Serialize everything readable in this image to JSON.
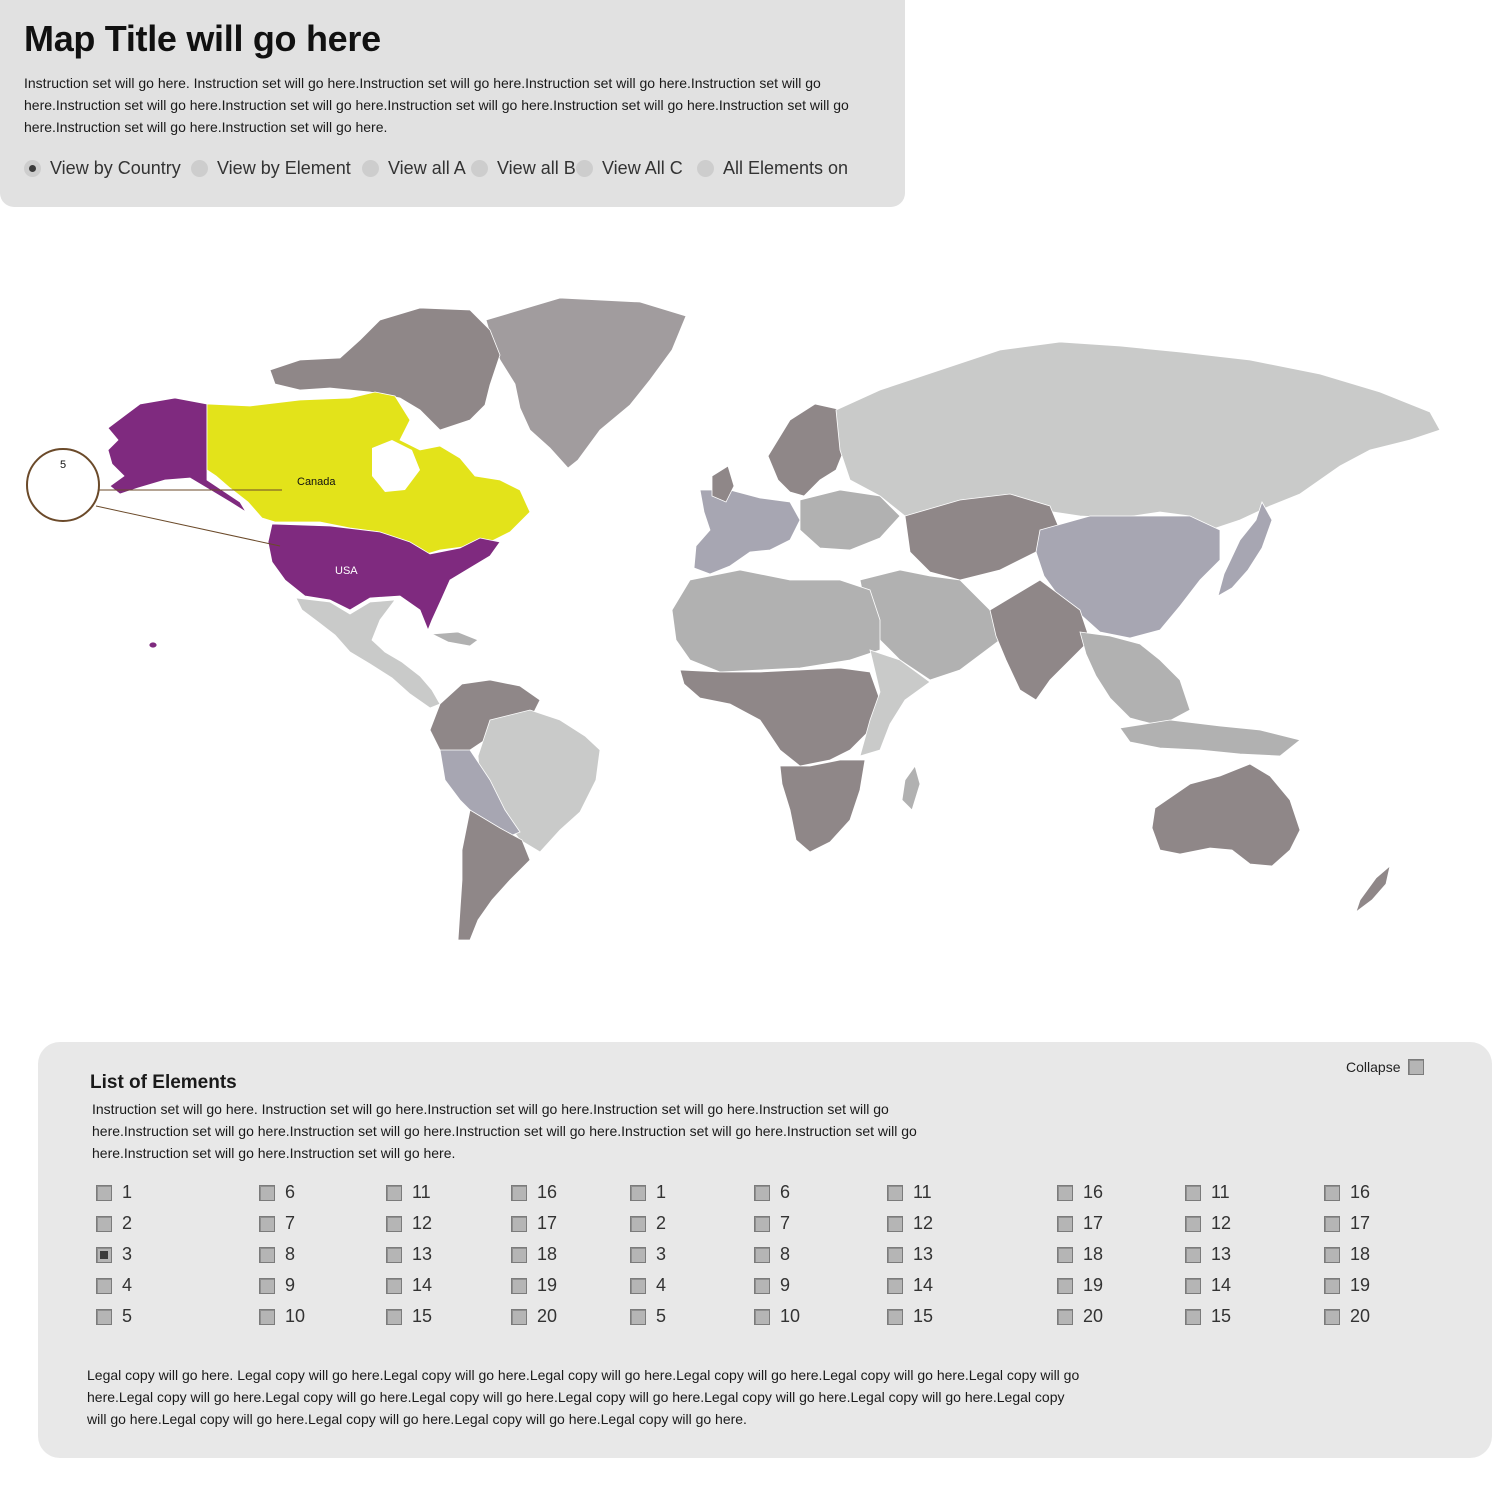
{
  "header": {
    "title": "Map Title will go here",
    "instructions": "Instruction set will go here. Instruction set will go here.Instruction set will go here.Instruction set will go here.Instruction set will go here.Instruction set will go here.Instruction set will go here.Instruction set will go here.Instruction set will go here.Instruction set will go here.Instruction set will go here.Instruction set will go here.",
    "view_options": [
      {
        "label": "View by Country",
        "checked": true
      },
      {
        "label": "View by Element",
        "checked": false
      },
      {
        "label": "View all A",
        "checked": false
      },
      {
        "label": "View all B",
        "checked": false
      },
      {
        "label": "View All C",
        "checked": false
      },
      {
        "label": "All Elements on",
        "checked": false
      }
    ]
  },
  "map": {
    "labels": {
      "canada": "Canada",
      "usa": "USA",
      "callout": "5"
    },
    "colors": {
      "ocean": "#ffffff",
      "usa_alaska": "#7f2a7f",
      "canada": "#e3e31a",
      "greenland": "#a19c9e",
      "light_gray": "#c9cac9",
      "mid_gray": "#b1b1b1",
      "dark_gray": "#8f8788",
      "blue_gray": "#a7a6b2",
      "callout_line": "#6b4a2a"
    }
  },
  "elements_panel": {
    "title": "List of Elements",
    "instructions": "Instruction set will go here. Instruction set will go here.Instruction set will go here.Instruction set will go here.Instruction set will go here.Instruction set will go here.Instruction set will go here.Instruction set will go here.Instruction set will go here.Instruction set will go here.Instruction set will go here.Instruction set will go here.",
    "collapse_label": "Collapse",
    "columns": [
      {
        "items": [
          {
            "label": "1"
          },
          {
            "label": "2"
          },
          {
            "label": "3",
            "checked": true
          },
          {
            "label": "4"
          },
          {
            "label": "5"
          }
        ]
      },
      {
        "items": [
          {
            "label": "6"
          },
          {
            "label": "7"
          },
          {
            "label": "8"
          },
          {
            "label": "9"
          },
          {
            "label": "10"
          }
        ]
      },
      {
        "items": [
          {
            "label": "11"
          },
          {
            "label": "12"
          },
          {
            "label": "13"
          },
          {
            "label": "14"
          },
          {
            "label": "15"
          }
        ]
      },
      {
        "items": [
          {
            "label": "16"
          },
          {
            "label": "17"
          },
          {
            "label": "18"
          },
          {
            "label": "19"
          },
          {
            "label": "20"
          }
        ]
      },
      {
        "items": [
          {
            "label": "1"
          },
          {
            "label": "2"
          },
          {
            "label": "3"
          },
          {
            "label": "4"
          },
          {
            "label": "5"
          }
        ]
      },
      {
        "items": [
          {
            "label": "6"
          },
          {
            "label": "7"
          },
          {
            "label": "8"
          },
          {
            "label": "9"
          },
          {
            "label": "10"
          }
        ]
      },
      {
        "items": [
          {
            "label": "11"
          },
          {
            "label": "12"
          },
          {
            "label": "13"
          },
          {
            "label": "14"
          },
          {
            "label": "15"
          }
        ]
      },
      {
        "items": [
          {
            "label": "16"
          },
          {
            "label": "17"
          },
          {
            "label": "18"
          },
          {
            "label": "19"
          },
          {
            "label": "20"
          }
        ]
      },
      {
        "items": [
          {
            "label": "11"
          },
          {
            "label": "12"
          },
          {
            "label": "13"
          },
          {
            "label": "14"
          },
          {
            "label": "15"
          }
        ]
      },
      {
        "items": [
          {
            "label": "16"
          },
          {
            "label": "17"
          },
          {
            "label": "18"
          },
          {
            "label": "19"
          },
          {
            "label": "20"
          }
        ]
      }
    ],
    "legal": "Legal copy will  go here. Legal copy will  go here.Legal copy will  go here.Legal copy will  go here.Legal copy will  go here.Legal copy will  go here.Legal copy will  go here.Legal copy will  go here.Legal copy will  go here.Legal copy will  go here.Legal copy will  go here.Legal copy will  go here.Legal copy will  go here.Legal copy will  go here.Legal copy will  go here.Legal copy will  go here.Legal copy will  go here.Legal copy will  go here."
  }
}
